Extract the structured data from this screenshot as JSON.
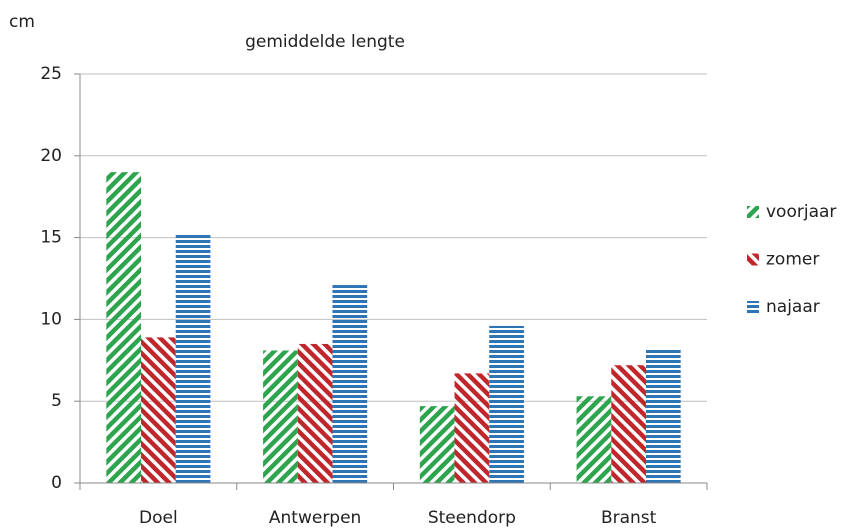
{
  "chart_data": {
    "type": "bar",
    "title": "gemiddelde lengte",
    "y_label": "cm",
    "categories": [
      "Doel",
      "Antwerpen",
      "Steendorp",
      "Branst"
    ],
    "series": [
      {
        "name": "voorjaar",
        "color": "#2ea44f",
        "hatch": "diagonal-down",
        "values": [
          19,
          8.1,
          4.7,
          5.3
        ]
      },
      {
        "name": "zomer",
        "color": "#c0272d",
        "hatch": "diagonal-up",
        "values": [
          8.9,
          8.5,
          6.7,
          7.2
        ]
      },
      {
        "name": "najaar",
        "color": "#2e75b6",
        "hatch": "horizontal",
        "values": [
          15.2,
          12.1,
          9.6,
          8.2
        ]
      }
    ],
    "ylim": [
      0,
      25
    ],
    "yticks": [
      0,
      5,
      10,
      15,
      20,
      25
    ],
    "grid": true,
    "legend": "right"
  }
}
